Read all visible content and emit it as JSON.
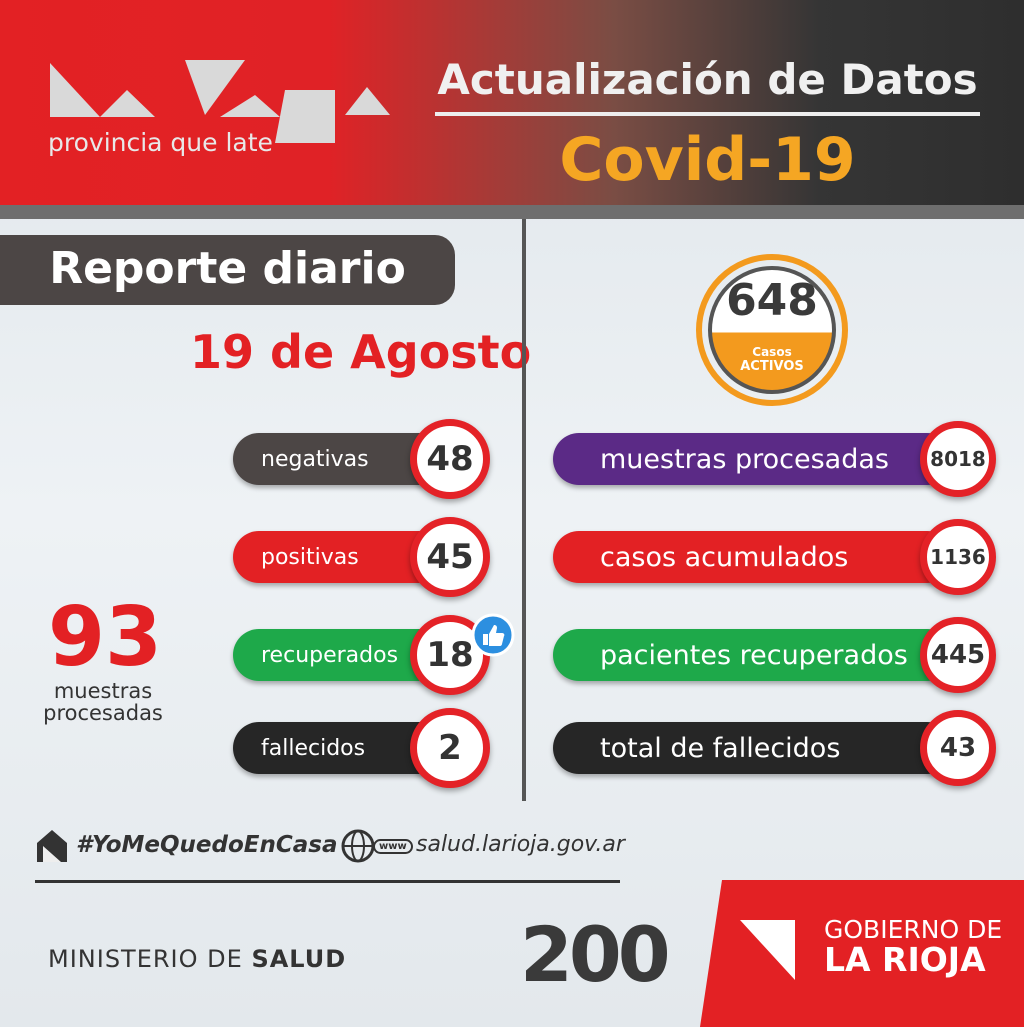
{
  "header": {
    "logo_text": "provincia que late",
    "title": "Actualización de Datos",
    "subtitle": "Covid-19"
  },
  "report": {
    "title": "Reporte diario",
    "date": "19 de Agosto"
  },
  "daily": {
    "items": [
      {
        "label": "negativas",
        "value": 48
      },
      {
        "label": "positivas",
        "value": 45
      },
      {
        "label": "recuperados",
        "value": 18
      },
      {
        "label": "fallecidos",
        "value": 2
      }
    ]
  },
  "daily_total": {
    "value": 93,
    "label": "muestras procesadas"
  },
  "active": {
    "value": 648,
    "label_top": "Casos",
    "label_bottom": "ACTIVOS"
  },
  "cumulative": {
    "items": [
      {
        "label": "muestras procesadas",
        "value": 8018
      },
      {
        "label": "casos acumulados",
        "value": 1136
      },
      {
        "label": "pacientes recuperados",
        "value": 445
      },
      {
        "label": "total de fallecidos",
        "value": 43
      }
    ]
  },
  "footer": {
    "hashtag": "#YoMeQuedoEnCasa",
    "www": "www",
    "website": "salud.larioja.gov.ar",
    "ministry_prefix": "MINISTERIO DE",
    "ministry_bold": "SALUD",
    "anniversary": "200",
    "government_top": "GOBIERNO DE",
    "government_bottom": "LA RIOJA"
  }
}
